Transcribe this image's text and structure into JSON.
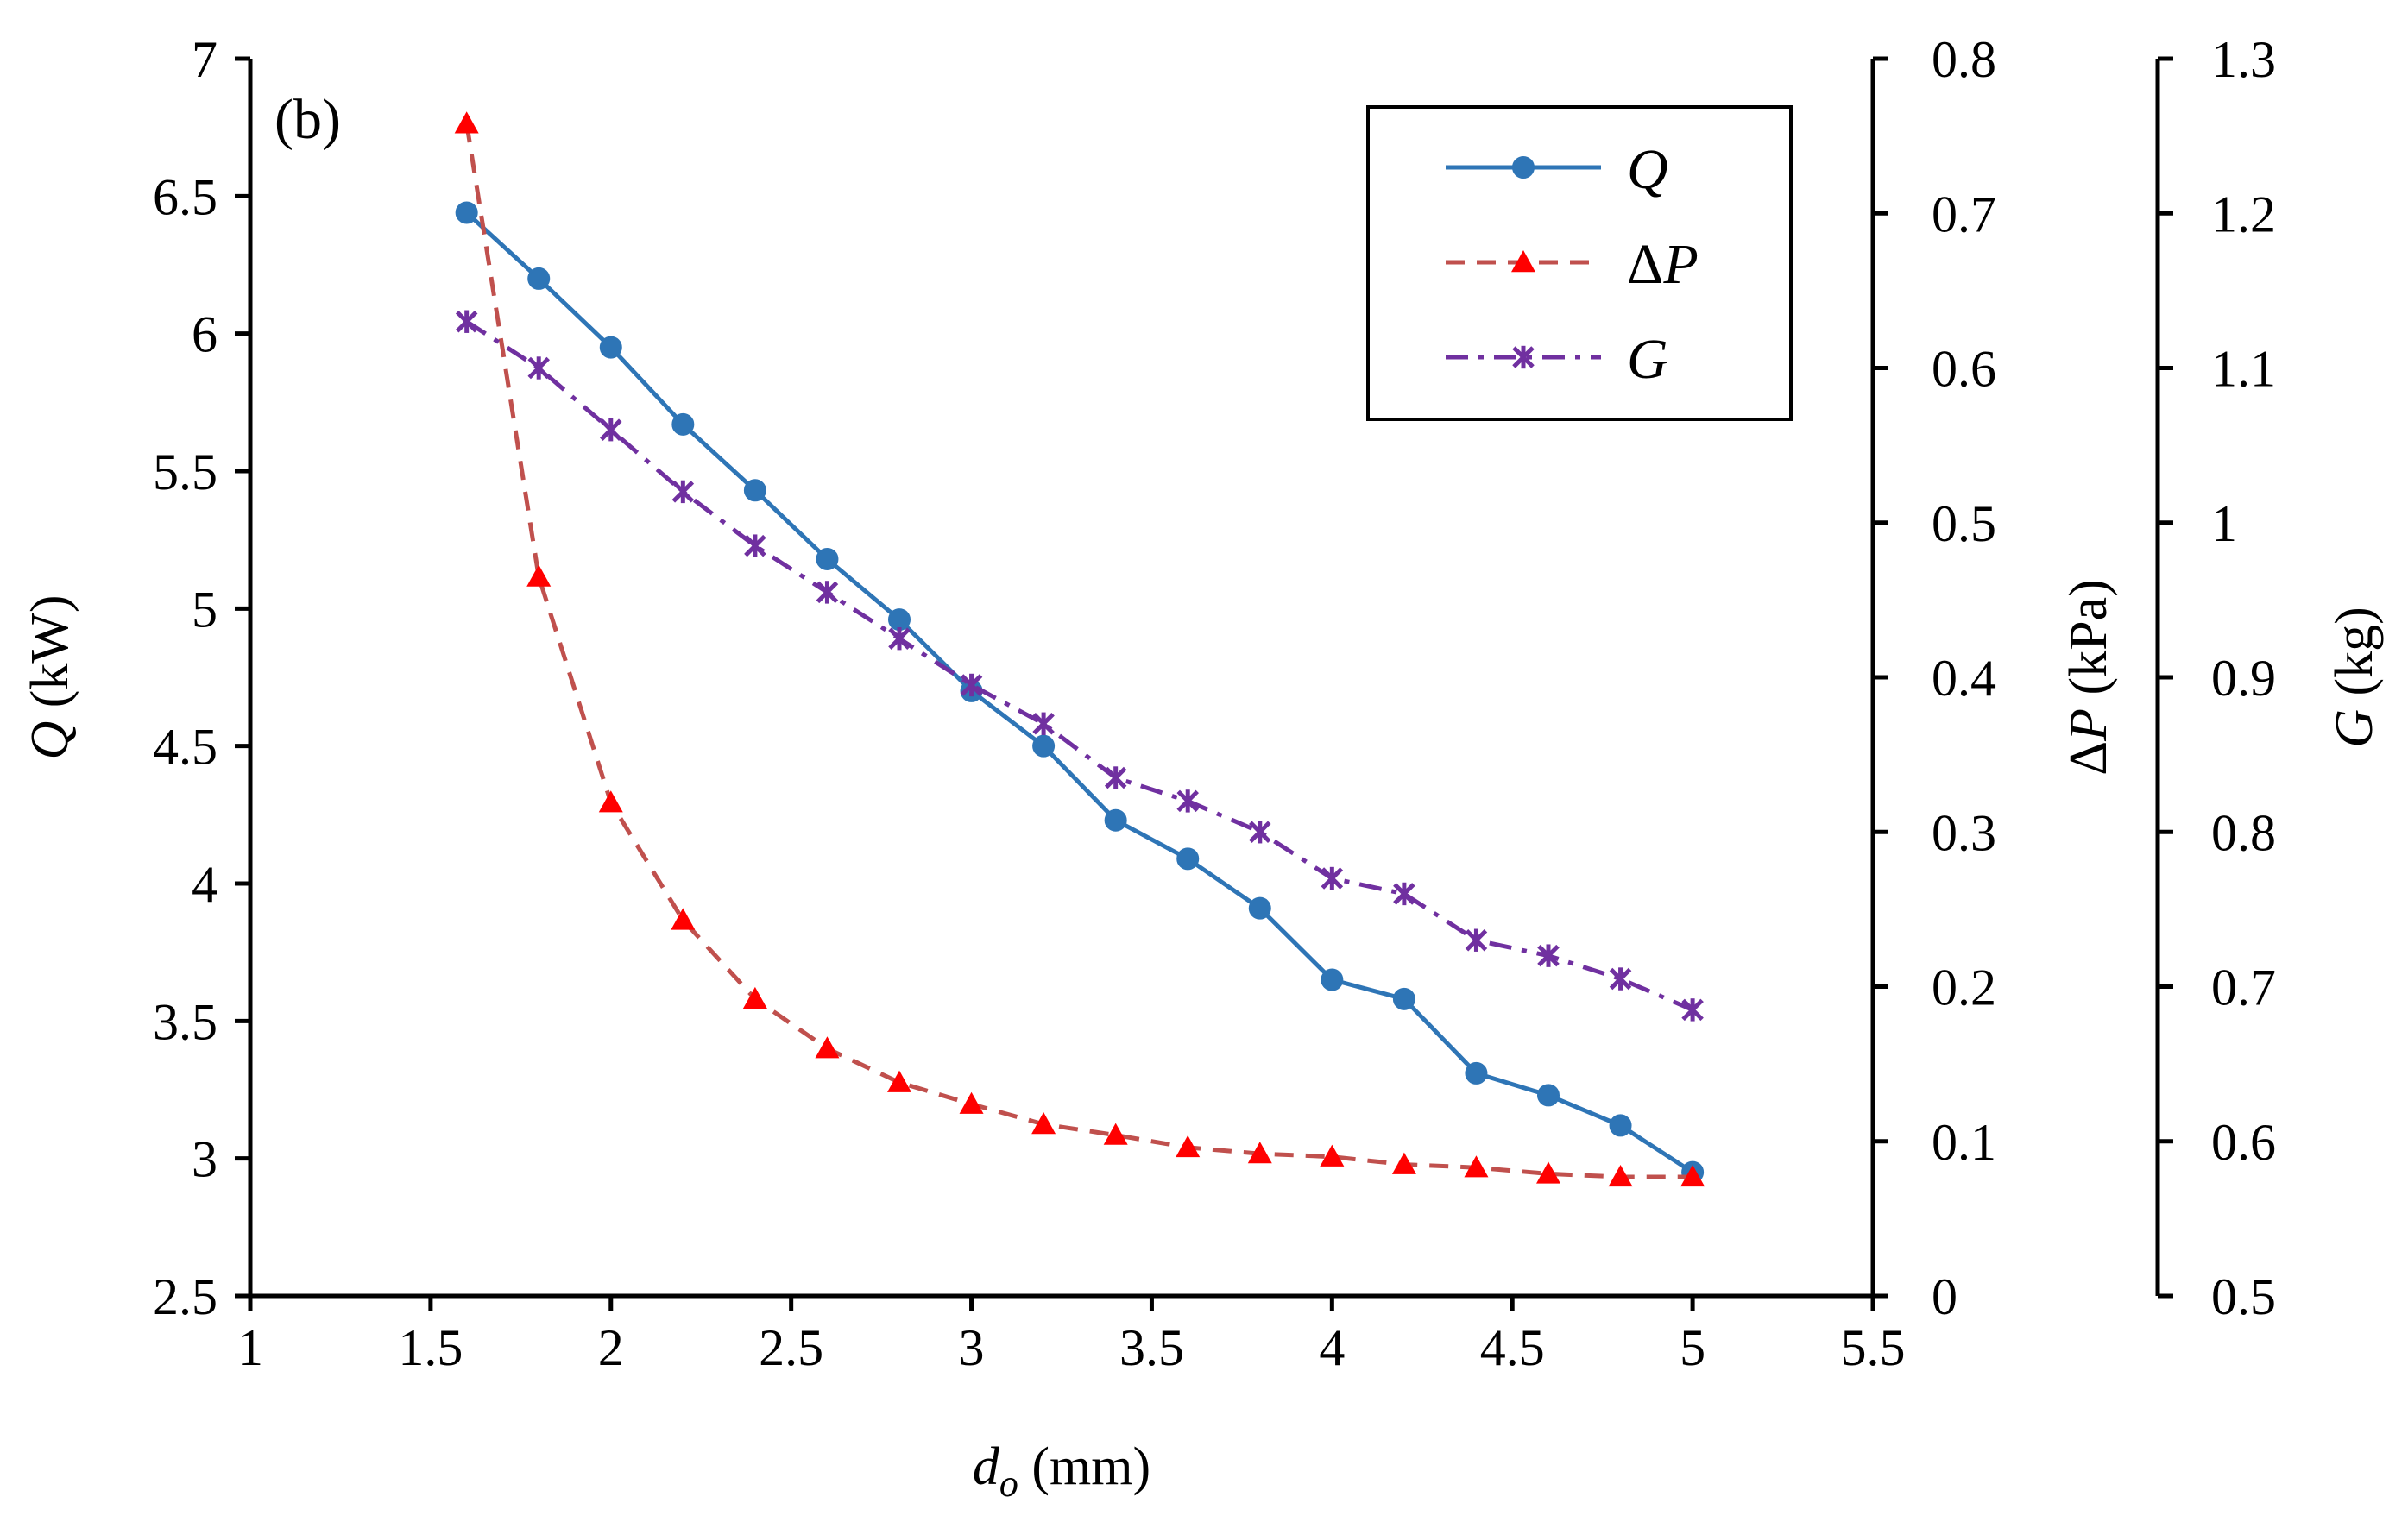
{
  "chart_data": {
    "type": "line",
    "panel_label": "(b)",
    "x": {
      "label_var": "d",
      "label_sub": "o",
      "label_unit": "(mm)",
      "range": [
        1,
        5.5
      ],
      "ticks": [
        "1",
        "1.5",
        "2",
        "2.5",
        "3",
        "3.5",
        "4",
        "4.5",
        "5",
        "5.5"
      ],
      "tick_values": [
        1,
        1.5,
        2,
        2.5,
        3,
        3.5,
        4,
        4.5,
        5,
        5.5
      ]
    },
    "y_left": {
      "label_var": "Q",
      "label_unit": "(kW)",
      "range": [
        2.5,
        7
      ],
      "ticks": [
        "2.5",
        "3",
        "3.5",
        "4",
        "4.5",
        "5",
        "5.5",
        "6",
        "6.5",
        "7"
      ],
      "tick_values": [
        2.5,
        3,
        3.5,
        4,
        4.5,
        5,
        5.5,
        6,
        6.5,
        7
      ]
    },
    "y_right1": {
      "label_var": "ΔP",
      "label_prefix": "Δ",
      "label_italic": "P",
      "label_unit": "(kPa)",
      "range": [
        0,
        0.8
      ],
      "ticks": [
        "0",
        "0.1",
        "0.2",
        "0.3",
        "0.4",
        "0.5",
        "0.6",
        "0.7",
        "0.8"
      ],
      "tick_values": [
        0,
        0.1,
        0.2,
        0.3,
        0.4,
        0.5,
        0.6,
        0.7,
        0.8
      ]
    },
    "y_right2": {
      "label_var": "G",
      "label_unit": "(kg)",
      "range": [
        0.5,
        1.3
      ],
      "ticks": [
        "0.5",
        "0.6",
        "0.7",
        "0.8",
        "0.9",
        "1",
        "1.1",
        "1.2",
        "1.3"
      ],
      "tick_values": [
        0.5,
        0.6,
        0.7,
        0.8,
        0.9,
        1.0,
        1.1,
        1.2,
        1.3
      ]
    },
    "x_values": [
      1.6,
      1.8,
      2.0,
      2.2,
      2.4,
      2.6,
      2.8,
      3.0,
      3.2,
      3.4,
      3.6,
      3.8,
      4.0,
      4.2,
      4.4,
      4.6,
      4.8,
      5.0
    ],
    "series": [
      {
        "name": "Q",
        "legend": "Q",
        "axis": "y_left",
        "color": "#2E75B6",
        "marker": "circle",
        "dash": "solid",
        "values": [
          6.44,
          6.2,
          5.95,
          5.67,
          5.43,
          5.18,
          4.96,
          4.7,
          4.5,
          4.23,
          4.09,
          3.91,
          3.65,
          3.58,
          3.31,
          3.23,
          3.12,
          2.95
        ]
      },
      {
        "name": "ΔP",
        "legend": "ΔP",
        "axis": "y_right1",
        "color": "#C0504D",
        "marker_color": "#FF0000",
        "marker": "triangle",
        "dash": "dashed",
        "values": [
          0.758,
          0.465,
          0.319,
          0.243,
          0.192,
          0.16,
          0.138,
          0.124,
          0.111,
          0.104,
          0.096,
          0.092,
          0.09,
          0.085,
          0.083,
          0.079,
          0.077,
          0.077
        ]
      },
      {
        "name": "G",
        "legend": "G",
        "axis": "y_right2",
        "color": "#7030A0",
        "marker": "asterisk",
        "dash": "dashdot",
        "values": [
          1.13,
          1.1,
          1.06,
          1.02,
          0.985,
          0.955,
          0.925,
          0.895,
          0.87,
          0.835,
          0.82,
          0.8,
          0.77,
          0.76,
          0.73,
          0.72,
          0.705,
          0.685
        ]
      }
    ],
    "legend_position": "top-right"
  }
}
